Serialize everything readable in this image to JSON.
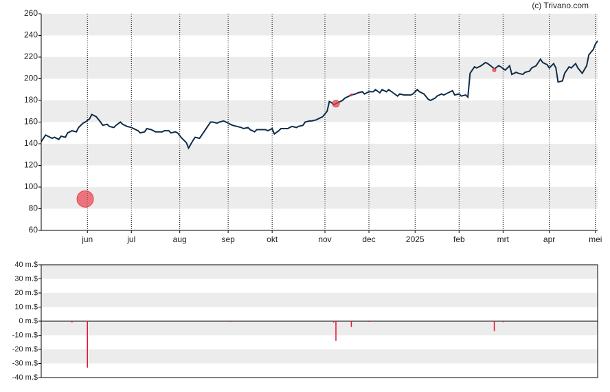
{
  "credit": "(c) Trivano.com",
  "chart_data": [
    {
      "type": "line",
      "color": "#0d2c4a",
      "grid": true,
      "xlim": [
        0,
        253
      ],
      "ylim": [
        60,
        260
      ],
      "yticks": [
        60,
        80,
        100,
        120,
        140,
        160,
        180,
        200,
        220,
        240,
        260
      ],
      "xticks": [
        {
          "value": 21,
          "label": "jun"
        },
        {
          "value": 41,
          "label": "jul"
        },
        {
          "value": 63,
          "label": "aug"
        },
        {
          "value": 85,
          "label": "sep"
        },
        {
          "value": 105,
          "label": "okt"
        },
        {
          "value": 129,
          "label": "nov"
        },
        {
          "value": 149,
          "label": "dec"
        },
        {
          "value": 170,
          "label": "2025"
        },
        {
          "value": 190,
          "label": "feb"
        },
        {
          "value": 210,
          "label": "mrt"
        },
        {
          "value": 231,
          "label": "apr"
        },
        {
          "value": 252,
          "label": "mei"
        }
      ],
      "x": [
        0,
        2,
        3,
        5,
        6,
        8,
        9,
        11,
        12,
        14,
        16,
        17,
        19,
        20,
        22,
        23,
        25,
        27,
        28,
        30,
        31,
        33,
        34,
        36,
        37,
        39,
        41,
        42,
        44,
        45,
        47,
        48,
        50,
        52,
        53,
        55,
        56,
        58,
        59,
        61,
        62,
        64,
        66,
        67,
        69,
        70,
        72,
        73,
        75,
        77,
        78,
        80,
        81,
        83,
        84,
        86,
        87,
        89,
        91,
        92,
        94,
        95,
        97,
        98,
        100,
        102,
        103,
        105,
        106,
        108,
        109,
        111,
        112,
        114,
        116,
        117,
        119,
        120,
        122,
        123,
        125,
        127,
        128,
        130,
        131,
        132,
        133,
        135,
        137,
        138,
        140,
        141,
        143,
        144,
        146,
        147,
        149,
        151,
        152,
        154,
        155,
        157,
        158,
        160,
        162,
        163,
        165,
        166,
        168,
        169,
        171,
        172,
        174,
        176,
        177,
        179,
        180,
        182,
        183,
        185,
        187,
        188,
        190,
        191,
        193,
        194,
        195,
        197,
        198,
        200,
        202,
        203,
        205,
        206,
        208,
        209,
        211,
        213,
        214,
        216,
        217,
        219,
        220,
        222,
        223,
        225,
        227,
        228,
        230,
        231,
        233,
        234,
        235,
        237,
        238,
        240,
        241,
        243,
        244,
        246,
        248,
        249,
        251,
        252,
        253
      ],
      "values": [
        142,
        148,
        147,
        145,
        146,
        144,
        147,
        146,
        150,
        152,
        151,
        155,
        159,
        160,
        163,
        167,
        165,
        160,
        157,
        158,
        156,
        155,
        157,
        160,
        158,
        156,
        155,
        154,
        152,
        150,
        151,
        154,
        153,
        151,
        151,
        151,
        152,
        152,
        150,
        151,
        150,
        145,
        141,
        136,
        143,
        146,
        145,
        148,
        154,
        160,
        160,
        159,
        160,
        161,
        160,
        158,
        157,
        156,
        155,
        154,
        155,
        153,
        151,
        153,
        153,
        153,
        152,
        154,
        149,
        152,
        154,
        154,
        154,
        156,
        155,
        156,
        157,
        160,
        161,
        161,
        162,
        164,
        165,
        170,
        179,
        178,
        176,
        178,
        180,
        182,
        184,
        185,
        186,
        187,
        188,
        186,
        188,
        188,
        190,
        187,
        190,
        188,
        190,
        187,
        184,
        186,
        185,
        185,
        185,
        186,
        190,
        188,
        186,
        181,
        180,
        182,
        184,
        186,
        185,
        187,
        189,
        185,
        186,
        184,
        185,
        183,
        205,
        211,
        210,
        212,
        215,
        214,
        211,
        209,
        212,
        211,
        208,
        212,
        204,
        206,
        205,
        204,
        206,
        207,
        210,
        212,
        218,
        215,
        213,
        210,
        214,
        210,
        197,
        198,
        205,
        211,
        210,
        214,
        210,
        205,
        212,
        222,
        227,
        232,
        235
      ],
      "bubbles": {
        "color": "#e8414e",
        "x": [
          20,
          134,
          141,
          206
        ],
        "y": [
          89,
          177,
          185,
          208
        ],
        "size": [
          12,
          5,
          1.5,
          2.5
        ]
      }
    },
    {
      "type": "bar",
      "color": "#e8112d",
      "xlim": [
        0,
        253
      ],
      "ylim": [
        -40,
        40
      ],
      "yticks": [
        {
          "value": -40,
          "label": "-40 m.$"
        },
        {
          "value": -30,
          "label": "-30 m.$"
        },
        {
          "value": -20,
          "label": "-20 m.$"
        },
        {
          "value": -10,
          "label": "-10 m.$"
        },
        {
          "value": 0,
          "label": "0 m.$"
        },
        {
          "value": 10,
          "label": "10 m.$"
        },
        {
          "value": 20,
          "label": "20 m.$"
        },
        {
          "value": 30,
          "label": "30 m.$"
        },
        {
          "value": 40,
          "label": "40 m.$"
        }
      ],
      "x": [
        14,
        21,
        86,
        133,
        134,
        141,
        149,
        206,
        210
      ],
      "values": [
        -1,
        -33,
        -0.5,
        -1,
        -14,
        -4,
        -0.5,
        -7,
        -0.7
      ]
    }
  ]
}
